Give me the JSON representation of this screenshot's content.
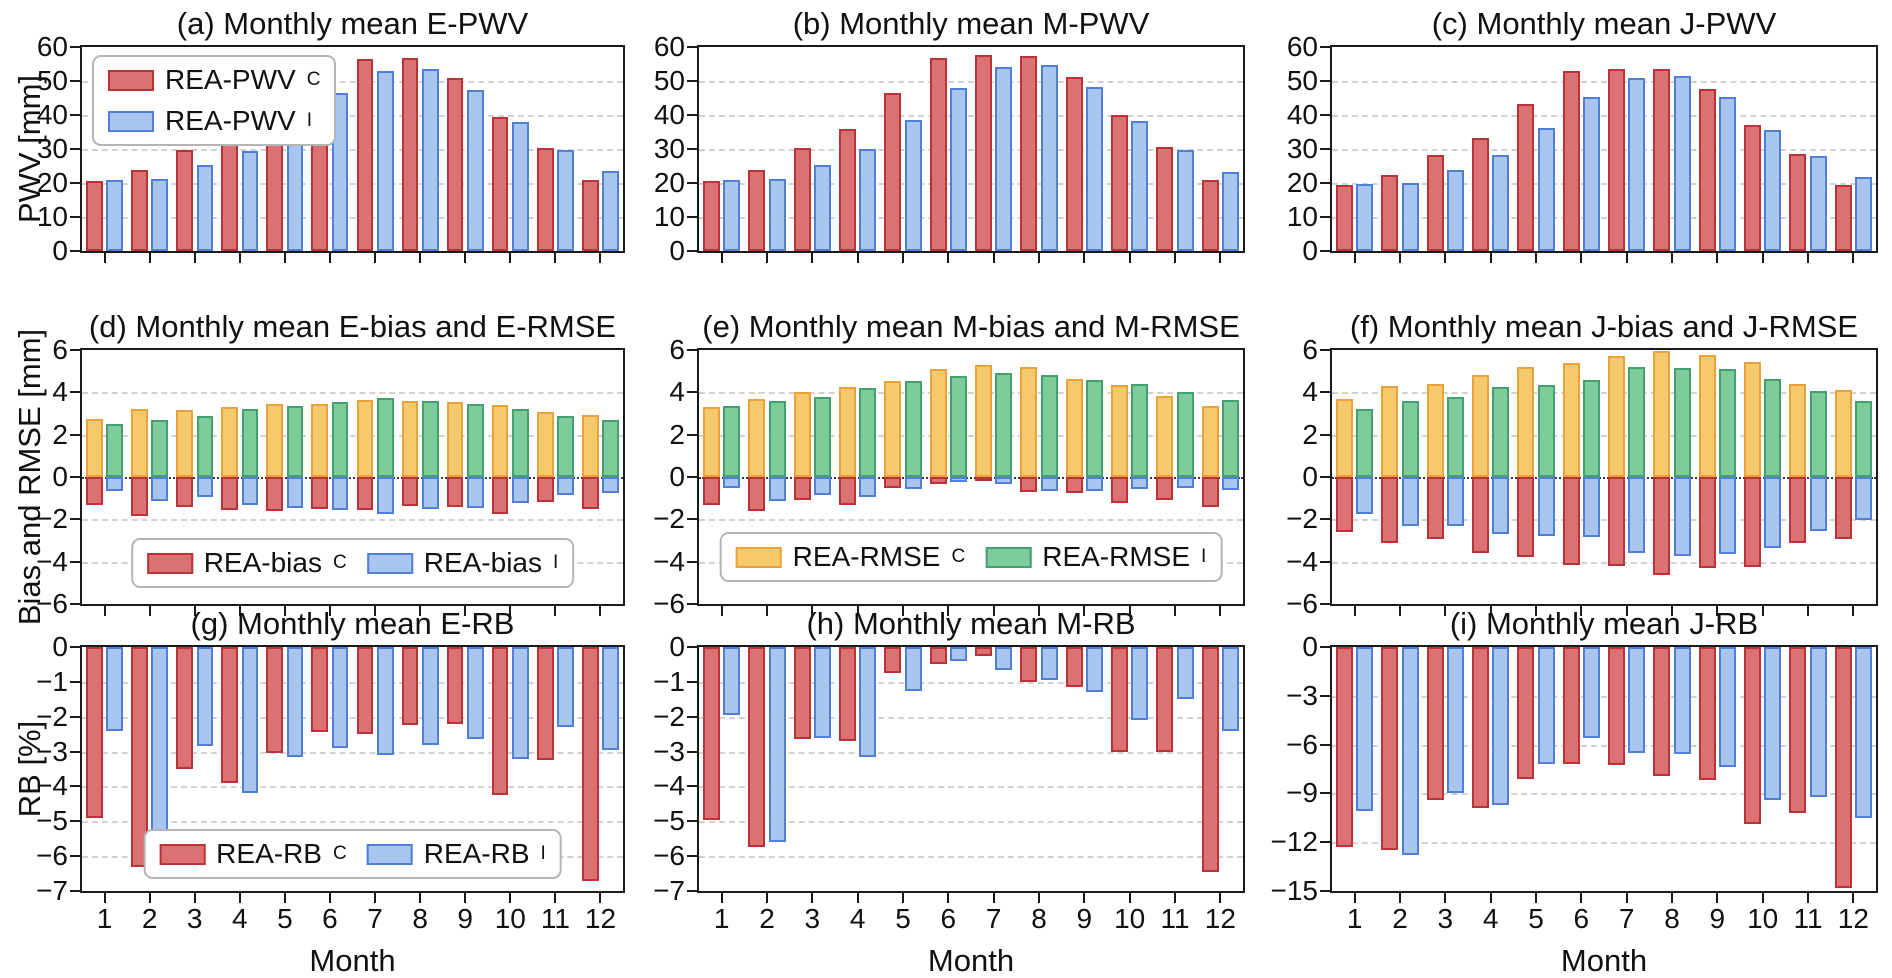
{
  "figure": {
    "xlabel": "Month",
    "months": [
      "1",
      "2",
      "3",
      "4",
      "5",
      "6",
      "7",
      "8",
      "9",
      "10",
      "11",
      "12"
    ],
    "ylabels": [
      "PWV [mm]",
      "Bias and RMSE [mm]",
      "RB [%]"
    ],
    "colors": {
      "red_fill": "#DB7173",
      "red_edge": "#B93438",
      "blue_fill": "#A9C6F0",
      "blue_edge": "#4F80D6",
      "yellow_fill": "#F6C96D",
      "yellow_edge": "#E8A33A",
      "green_fill": "#7ECB9C",
      "green_edge": "#43A170",
      "grid": "#d2d2d2",
      "axis": "#1a1a1a"
    }
  },
  "chart_data": [
    {
      "type": "bar",
      "title": "(a) Monthly mean E-PWV",
      "ylim": [
        0,
        60
      ],
      "ytick_values": [
        0,
        10,
        20,
        30,
        40,
        50,
        60
      ],
      "ytick_labels": [
        "0",
        "10",
        "20",
        "30",
        "40",
        "50",
        "60"
      ],
      "grid_values": [
        10,
        20,
        30,
        40,
        50
      ],
      "series": [
        {
          "name": "REA-PWV",
          "sub": "C",
          "slot": 0,
          "fill": "#DB7173",
          "edge": "#B93438",
          "values": [
            20.6,
            23.7,
            29.8,
            35.3,
            45.5,
            55.5,
            56.4,
            56.7,
            50.8,
            39.5,
            30.4,
            21.0
          ]
        },
        {
          "name": "REA-PWV",
          "sub": "I",
          "slot": 1,
          "fill": "#A9C6F0",
          "edge": "#4F80D6",
          "values": [
            21.0,
            21.3,
            25.2,
            29.3,
            37.9,
            46.5,
            52.8,
            53.6,
            47.4,
            37.9,
            29.8,
            23.4
          ]
        }
      ],
      "legend": {
        "orientation": "col",
        "position": "top-left",
        "entries": [
          {
            "label": "REA-PWV",
            "sub": "C",
            "fill": "#DB7173",
            "edge": "#B93438"
          },
          {
            "label": "REA-PWV",
            "sub": "I",
            "fill": "#A9C6F0",
            "edge": "#4F80D6"
          }
        ]
      }
    },
    {
      "type": "bar",
      "title": "(b) Monthly mean M-PWV",
      "ylim": [
        0,
        60
      ],
      "ytick_values": [
        0,
        10,
        20,
        30,
        40,
        50,
        60
      ],
      "ytick_labels": [
        "0",
        "10",
        "20",
        "30",
        "40",
        "50",
        "60"
      ],
      "grid_values": [
        10,
        20,
        30,
        40,
        50
      ],
      "series": [
        {
          "name": "REA-PWV",
          "sub": "C",
          "slot": 0,
          "fill": "#DB7173",
          "edge": "#B93438",
          "values": [
            20.6,
            23.9,
            30.2,
            35.8,
            46.5,
            56.7,
            57.7,
            57.5,
            51.2,
            40.1,
            30.5,
            21.0
          ]
        },
        {
          "name": "REA-PWV",
          "sub": "I",
          "slot": 1,
          "fill": "#A9C6F0",
          "edge": "#4F80D6",
          "values": [
            20.8,
            21.1,
            25.3,
            29.9,
            38.5,
            47.8,
            54.0,
            54.6,
            48.2,
            38.1,
            29.8,
            23.2
          ]
        }
      ]
    },
    {
      "type": "bar",
      "title": "(c) Monthly mean J-PWV",
      "ylim": [
        0,
        60
      ],
      "ytick_values": [
        0,
        10,
        20,
        30,
        40,
        50,
        60
      ],
      "ytick_labels": [
        "0",
        "10",
        "20",
        "30",
        "40",
        "50",
        "60"
      ],
      "grid_values": [
        10,
        20,
        30,
        40,
        50
      ],
      "series": [
        {
          "name": "REA-PWV",
          "sub": "C",
          "slot": 0,
          "fill": "#DB7173",
          "edge": "#B93438",
          "values": [
            19.3,
            22.4,
            28.2,
            33.3,
            43.3,
            52.8,
            53.5,
            53.4,
            47.7,
            37.0,
            28.5,
            19.3
          ]
        },
        {
          "name": "REA-PWV",
          "sub": "I",
          "slot": 1,
          "fill": "#A9C6F0",
          "edge": "#4F80D6",
          "values": [
            19.6,
            20.0,
            23.9,
            28.2,
            36.3,
            45.2,
            50.8,
            51.6,
            45.3,
            35.5,
            27.8,
            21.7
          ]
        }
      ]
    },
    {
      "type": "bar",
      "title": "(d) Monthly mean E-bias and E-RMSE",
      "ylim": [
        -6,
        6
      ],
      "ytick_values": [
        -6,
        -4,
        -2,
        0,
        2,
        4,
        6
      ],
      "ytick_labels": [
        "−6",
        "−4",
        "−2",
        "0",
        "2",
        "4",
        "6"
      ],
      "grid_values": [
        -4,
        -2,
        2,
        4
      ],
      "zero_line": true,
      "series": [
        {
          "name": "REA-RMSE",
          "sub": "C",
          "slot": 0,
          "fill": "#F6C96D",
          "edge": "#E8A33A",
          "values": [
            2.75,
            3.2,
            3.15,
            3.3,
            3.45,
            3.45,
            3.65,
            3.6,
            3.55,
            3.4,
            3.05,
            2.95
          ]
        },
        {
          "name": "REA-bias",
          "sub": "C",
          "slot": 0,
          "fill": "#DB7173",
          "edge": "#B93438",
          "values": [
            -1.3,
            -1.85,
            -1.4,
            -1.55,
            -1.6,
            -1.5,
            -1.55,
            -1.35,
            -1.4,
            -1.75,
            -1.2,
            -1.5
          ]
        },
        {
          "name": "REA-RMSE",
          "sub": "I",
          "slot": 1,
          "fill": "#7ECB9C",
          "edge": "#43A170",
          "values": [
            2.5,
            2.7,
            2.9,
            3.2,
            3.35,
            3.55,
            3.75,
            3.6,
            3.45,
            3.2,
            2.9,
            2.7
          ]
        },
        {
          "name": "REA-bias",
          "sub": "I",
          "slot": 1,
          "fill": "#A9C6F0",
          "edge": "#4F80D6",
          "values": [
            -0.65,
            -1.15,
            -0.95,
            -1.3,
            -1.45,
            -1.55,
            -1.75,
            -1.5,
            -1.45,
            -1.25,
            -0.85,
            -0.75
          ]
        }
      ],
      "legend": {
        "orientation": "row",
        "position": "bottom-center",
        "entries": [
          {
            "label": "REA-bias",
            "sub": "C",
            "fill": "#DB7173",
            "edge": "#B93438"
          },
          {
            "label": "REA-bias",
            "sub": "I",
            "fill": "#A9C6F0",
            "edge": "#4F80D6"
          }
        ]
      }
    },
    {
      "type": "bar",
      "title": "(e) Monthly mean M-bias and M-RMSE",
      "ylim": [
        -6,
        6
      ],
      "ytick_values": [
        -6,
        -4,
        -2,
        0,
        2,
        4,
        6
      ],
      "ytick_labels": [
        "−6",
        "−4",
        "−2",
        "0",
        "2",
        "4",
        "6"
      ],
      "grid_values": [
        -4,
        -2,
        2,
        4
      ],
      "zero_line": true,
      "series": [
        {
          "name": "REA-RMSE",
          "sub": "C",
          "slot": 0,
          "fill": "#F6C96D",
          "edge": "#E8A33A",
          "values": [
            3.3,
            3.7,
            4.0,
            4.25,
            4.55,
            5.1,
            5.3,
            5.2,
            4.65,
            4.35,
            3.85,
            3.35
          ]
        },
        {
          "name": "REA-bias",
          "sub": "C",
          "slot": 0,
          "fill": "#DB7173",
          "edge": "#B93438",
          "values": [
            -1.3,
            -1.6,
            -1.1,
            -1.3,
            -0.5,
            -0.35,
            -0.15,
            -0.7,
            -0.75,
            -1.25,
            -1.1,
            -1.4
          ]
        },
        {
          "name": "REA-RMSE",
          "sub": "I",
          "slot": 1,
          "fill": "#7ECB9C",
          "edge": "#43A170",
          "values": [
            3.35,
            3.6,
            3.8,
            4.2,
            4.55,
            4.75,
            4.9,
            4.8,
            4.6,
            4.4,
            4.0,
            3.65
          ]
        },
        {
          "name": "REA-bias",
          "sub": "I",
          "slot": 1,
          "fill": "#A9C6F0",
          "edge": "#4F80D6",
          "values": [
            -0.5,
            -1.15,
            -0.85,
            -0.95,
            -0.55,
            -0.25,
            -0.35,
            -0.65,
            -0.65,
            -0.55,
            -0.5,
            -0.6
          ]
        }
      ],
      "legend": {
        "orientation": "row",
        "position": "bottom-center",
        "entries": [
          {
            "label": "REA-RMSE",
            "sub": "C",
            "fill": "#F6C96D",
            "edge": "#E8A33A"
          },
          {
            "label": "REA-RMSE",
            "sub": "I",
            "fill": "#7ECB9C",
            "edge": "#43A170"
          }
        ]
      }
    },
    {
      "type": "bar",
      "title": "(f) Monthly mean J-bias and J-RMSE",
      "ylim": [
        -6,
        6
      ],
      "ytick_values": [
        -6,
        -4,
        -2,
        0,
        2,
        4,
        6
      ],
      "ytick_labels": [
        "−6",
        "−4",
        "−2",
        "0",
        "2",
        "4",
        "6"
      ],
      "grid_values": [
        -4,
        -2,
        2,
        4
      ],
      "zero_line": true,
      "series": [
        {
          "name": "REA-RMSE",
          "sub": "C",
          "slot": 0,
          "fill": "#F6C96D",
          "edge": "#E8A33A",
          "values": [
            3.7,
            4.3,
            4.4,
            4.8,
            5.2,
            5.4,
            5.7,
            5.95,
            5.75,
            5.45,
            4.4,
            4.1
          ]
        },
        {
          "name": "REA-bias",
          "sub": "C",
          "slot": 0,
          "fill": "#DB7173",
          "edge": "#B93438",
          "values": [
            -2.6,
            -3.1,
            -2.95,
            -3.6,
            -3.8,
            -4.15,
            -4.2,
            -4.65,
            -4.3,
            -4.25,
            -3.1,
            -2.95
          ]
        },
        {
          "name": "REA-RMSE",
          "sub": "I",
          "slot": 1,
          "fill": "#7ECB9C",
          "edge": "#43A170",
          "values": [
            3.2,
            3.6,
            3.8,
            4.25,
            4.35,
            4.6,
            5.2,
            5.15,
            5.1,
            4.65,
            4.05,
            3.6
          ]
        },
        {
          "name": "REA-bias",
          "sub": "I",
          "slot": 1,
          "fill": "#A9C6F0",
          "edge": "#4F80D6",
          "values": [
            -1.75,
            -2.3,
            -2.3,
            -2.7,
            -2.8,
            -2.85,
            -3.6,
            -3.75,
            -3.65,
            -3.35,
            -2.55,
            -2.05
          ]
        }
      ]
    },
    {
      "type": "bar",
      "title": "(g) Monthly mean E-RB",
      "ylim": [
        -7,
        0
      ],
      "ytick_values": [
        0,
        -1,
        -2,
        -3,
        -4,
        -5,
        -6,
        -7
      ],
      "ytick_labels": [
        "0",
        "−1",
        "−2",
        "−3",
        "−4",
        "−5",
        "−6",
        "−7"
      ],
      "grid_values": [
        -1,
        -2,
        -3,
        -4,
        -5,
        -6
      ],
      "show_xticklabels": true,
      "series": [
        {
          "name": "REA-RB",
          "sub": "C",
          "slot": 0,
          "fill": "#DB7173",
          "edge": "#B93438",
          "values": [
            -4.9,
            -6.3,
            -3.5,
            -3.9,
            -3.05,
            -2.45,
            -2.5,
            -2.25,
            -2.2,
            -4.25,
            -3.25,
            -6.7
          ]
        },
        {
          "name": "REA-RB",
          "sub": "I",
          "slot": 1,
          "fill": "#A9C6F0",
          "edge": "#4F80D6",
          "values": [
            -2.4,
            -5.5,
            -2.85,
            -4.2,
            -3.15,
            -2.9,
            -3.1,
            -2.8,
            -2.65,
            -3.2,
            -2.3,
            -2.95
          ]
        }
      ],
      "legend": {
        "orientation": "row",
        "position": "bottom-center",
        "entries": [
          {
            "label": "REA-RB",
            "sub": "C",
            "fill": "#DB7173",
            "edge": "#B93438"
          },
          {
            "label": "REA-RB",
            "sub": "I",
            "fill": "#A9C6F0",
            "edge": "#4F80D6"
          }
        ]
      }
    },
    {
      "type": "bar",
      "title": "(h) Monthly mean M-RB",
      "ylim": [
        -7,
        0
      ],
      "ytick_values": [
        0,
        -1,
        -2,
        -3,
        -4,
        -5,
        -6,
        -7
      ],
      "ytick_labels": [
        "0",
        "−1",
        "−2",
        "−3",
        "−4",
        "−5",
        "−6",
        "−7"
      ],
      "grid_values": [
        -1,
        -2,
        -3,
        -4,
        -5,
        -6
      ],
      "show_xticklabels": true,
      "series": [
        {
          "name": "REA-RB",
          "sub": "C",
          "slot": 0,
          "fill": "#DB7173",
          "edge": "#B93438",
          "values": [
            -4.95,
            -5.75,
            -2.65,
            -2.7,
            -0.75,
            -0.5,
            -0.25,
            -1.0,
            -1.15,
            -3.0,
            -3.0,
            -6.45
          ]
        },
        {
          "name": "REA-RB",
          "sub": "I",
          "slot": 1,
          "fill": "#A9C6F0",
          "edge": "#4F80D6",
          "values": [
            -1.95,
            -5.6,
            -2.6,
            -3.15,
            -1.25,
            -0.4,
            -0.65,
            -0.95,
            -1.3,
            -2.1,
            -1.5,
            -2.4
          ]
        }
      ]
    },
    {
      "type": "bar",
      "title": "(i) Monthly mean J-RB",
      "ylim": [
        -15,
        0
      ],
      "ytick_values": [
        0,
        -3,
        -6,
        -9,
        -12,
        -15
      ],
      "ytick_labels": [
        "0",
        "−3",
        "−6",
        "−9",
        "−12",
        "−15"
      ],
      "grid_values": [
        -3,
        -6,
        -9,
        -12
      ],
      "show_xticklabels": true,
      "series": [
        {
          "name": "REA-RB",
          "sub": "C",
          "slot": 0,
          "fill": "#DB7173",
          "edge": "#B93438",
          "values": [
            -12.3,
            -12.5,
            -9.4,
            -9.9,
            -8.1,
            -7.2,
            -7.25,
            -7.9,
            -8.2,
            -10.9,
            -10.2,
            -14.8
          ]
        },
        {
          "name": "REA-RB",
          "sub": "I",
          "slot": 1,
          "fill": "#A9C6F0",
          "edge": "#4F80D6",
          "values": [
            -10.1,
            -12.8,
            -9.0,
            -9.7,
            -7.2,
            -5.6,
            -6.5,
            -6.6,
            -7.4,
            -9.4,
            -9.2,
            -10.5
          ]
        }
      ]
    }
  ]
}
